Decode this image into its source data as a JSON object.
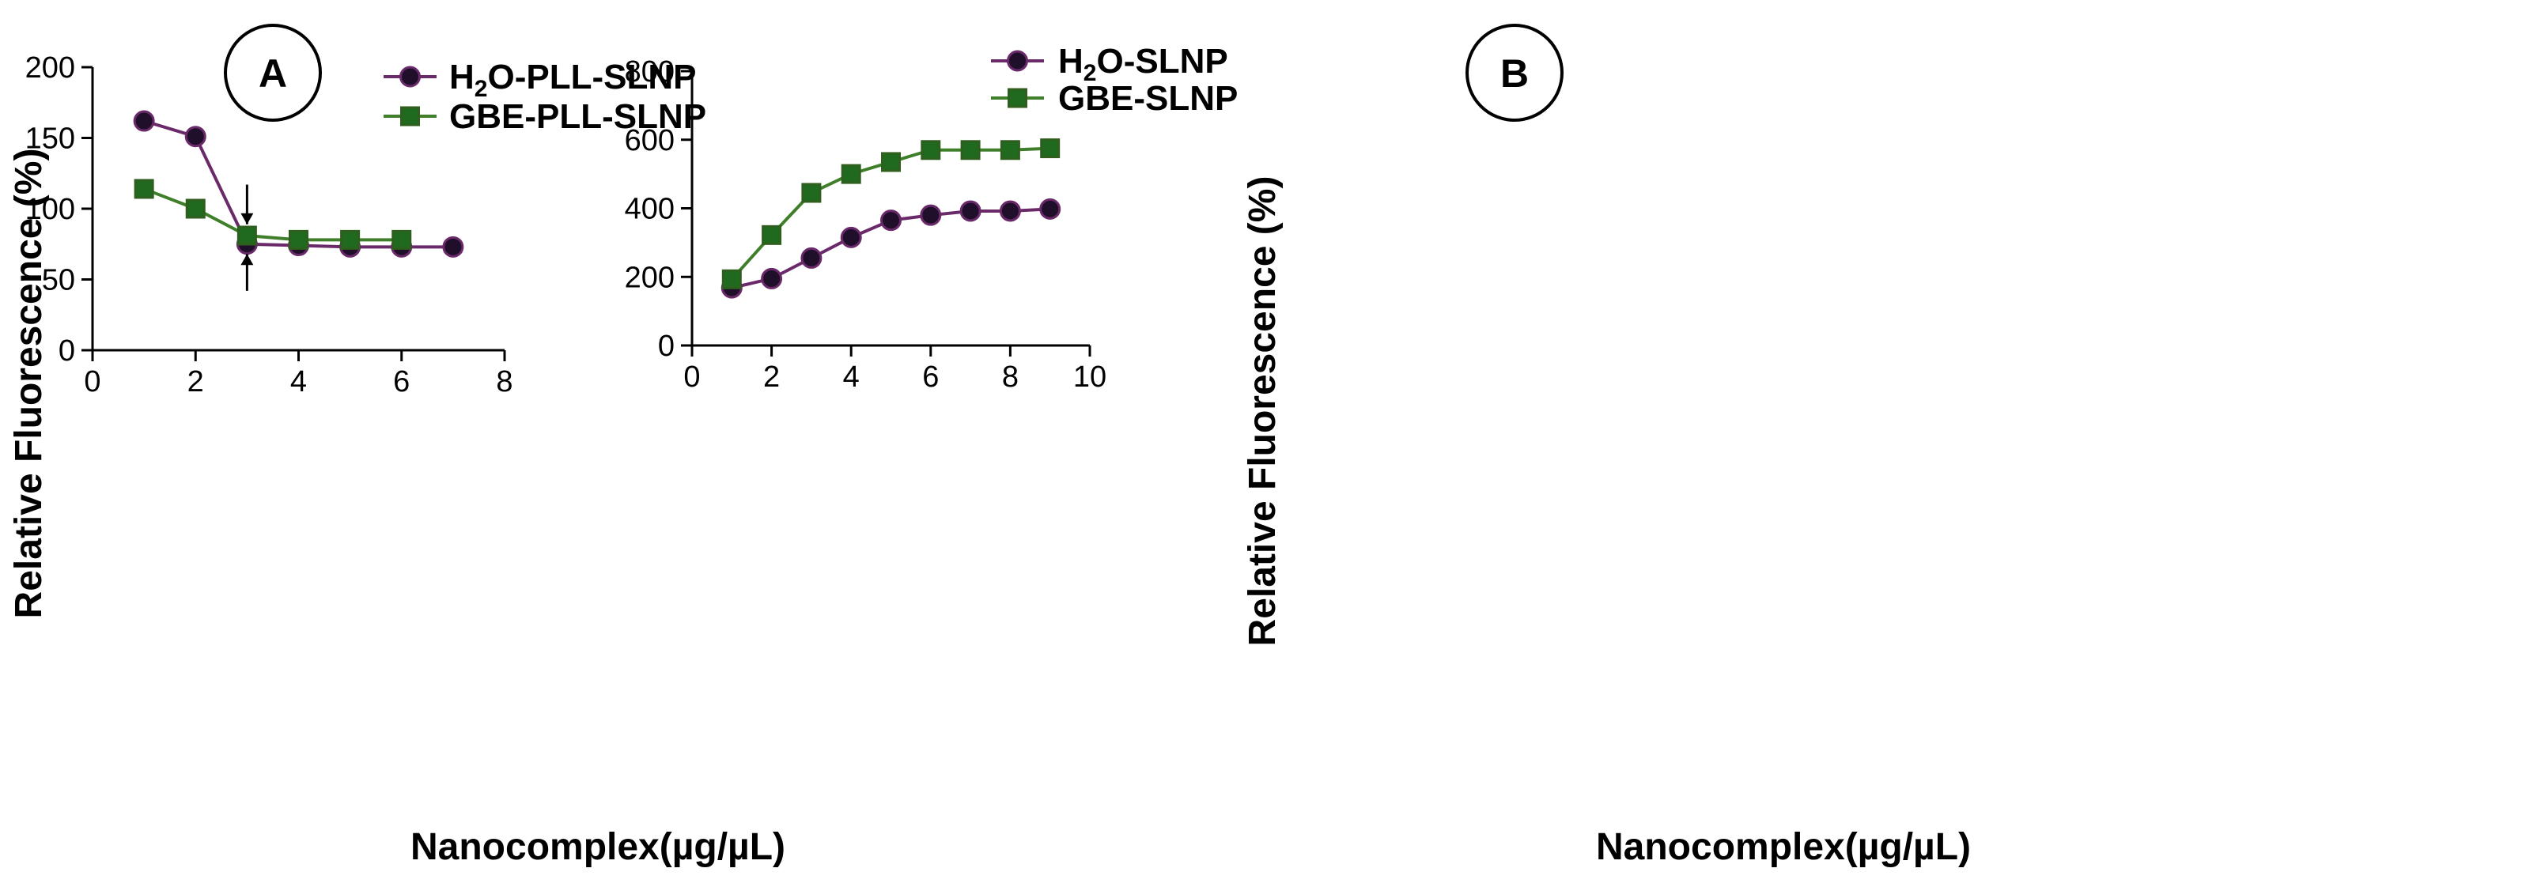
{
  "chart_data": [
    {
      "type": "line",
      "panel_label": "A",
      "xlabel": "Nanocomplex(µg/µL)",
      "ylabel": "Relative Fluorescence (%)",
      "xlim": [
        0,
        8
      ],
      "ylim": [
        0,
        200
      ],
      "xticks": [
        0,
        2,
        4,
        6,
        8
      ],
      "yticks": [
        0,
        50,
        100,
        150,
        200
      ],
      "legend_position": "top-right",
      "series": [
        {
          "name": "H2O-PLL-SLNP",
          "name_main": "H",
          "name_sub": "2",
          "name_rest": "O-PLL-SLNP",
          "marker": "circle",
          "color": "#6a2a6a",
          "fill": "#1f0f2a",
          "x": [
            1,
            2,
            3,
            4,
            5,
            6,
            7
          ],
          "y": [
            162,
            151,
            75,
            74,
            73,
            73,
            73
          ]
        },
        {
          "name": "GBE-PLL-SLNP",
          "marker": "square",
          "color": "#3f7f2a",
          "fill": "#1f6a1f",
          "x": [
            1,
            2,
            3,
            4,
            5,
            6
          ],
          "y": [
            114,
            100,
            81,
            78,
            78,
            78
          ]
        }
      ],
      "annotations": [
        {
          "type": "arrow-down",
          "x": 3,
          "y_from": 117,
          "y_to": 89
        },
        {
          "type": "arrow-up",
          "x": 3,
          "y_from": 42,
          "y_to": 68
        }
      ]
    },
    {
      "type": "line",
      "panel_label": "B",
      "xlabel": "Nanocomplex(µg/µL)",
      "ylabel": "Relative Fluorescence (%)",
      "xlim": [
        0,
        10
      ],
      "ylim": [
        0,
        800
      ],
      "xticks": [
        0,
        2,
        4,
        6,
        8,
        10
      ],
      "yticks": [
        0,
        200,
        400,
        600,
        800
      ],
      "legend_position": "top-right",
      "series": [
        {
          "name": "H2O-SLNP",
          "name_main": "H",
          "name_sub": "2",
          "name_rest": "O-SLNP",
          "marker": "circle",
          "color": "#6a2a6a",
          "fill": "#1f0f2a",
          "x": [
            1,
            2,
            3,
            4,
            5,
            6,
            7,
            8,
            9
          ],
          "y": [
            168,
            195,
            255,
            315,
            365,
            380,
            392,
            392,
            398
          ]
        },
        {
          "name": "GBE-SLNP",
          "marker": "square",
          "color": "#3f7f2a",
          "fill": "#1f6a1f",
          "x": [
            1,
            2,
            3,
            4,
            5,
            6,
            7,
            8,
            9
          ],
          "y": [
            193,
            322,
            445,
            500,
            535,
            570,
            570,
            570,
            575
          ]
        }
      ]
    }
  ]
}
